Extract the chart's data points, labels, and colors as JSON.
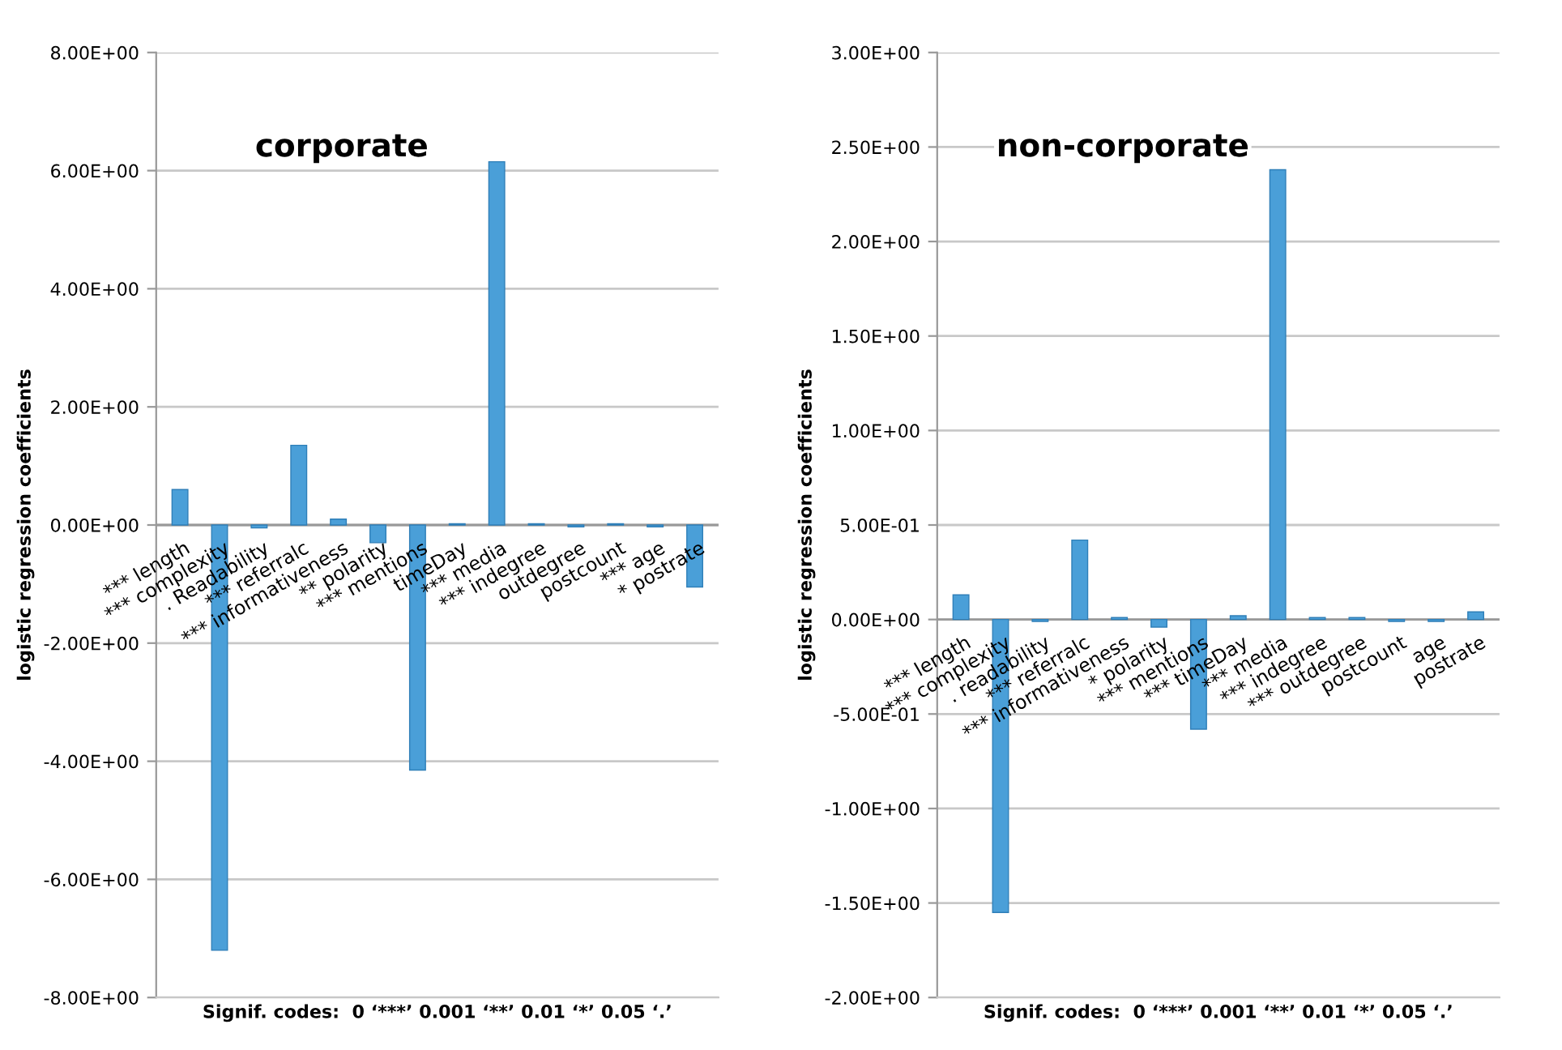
{
  "chart_data": [
    {
      "type": "bar",
      "title": "corporate",
      "ylabel": "logistic regression coefficients",
      "xlabel": "Signif. codes:  0 ‘***’ 0.001 ‘**’ 0.01 ‘*’ 0.05 ‘.’",
      "categories": [
        "*** length",
        "*** complexity",
        ". Readability",
        "*** referralc",
        "*** informativeness",
        "** polarity",
        "*** mentions",
        "timeDay",
        "*** media",
        "*** indegree",
        "outdegree",
        "postcount",
        "*** age",
        "* postrate"
      ],
      "values": [
        0.6,
        -7.2,
        -0.05,
        1.35,
        0.1,
        -0.3,
        -4.15,
        0.02,
        6.15,
        0.02,
        -0.03,
        0.02,
        -0.03,
        -1.05
      ],
      "color": "#4a9fd8",
      "ylim": [
        -8,
        8
      ],
      "yticks": [
        {
          "value": -8,
          "label": "-8.00E+00"
        },
        {
          "value": -6,
          "label": "-6.00E+00"
        },
        {
          "value": -4,
          "label": "-4.00E+00"
        },
        {
          "value": -2,
          "label": "-2.00E+00"
        },
        {
          "value": 0,
          "label": "0.00E+00"
        },
        {
          "value": 2,
          "label": "2.00E+00"
        },
        {
          "value": 4,
          "label": "4.00E+00"
        },
        {
          "value": 6,
          "label": "6.00E+00"
        },
        {
          "value": 8,
          "label": "8.00E+00"
        }
      ],
      "grid": "y"
    },
    {
      "type": "bar",
      "title": "non-corporate",
      "ylabel": "logistic regression coefficients",
      "xlabel": "Signif. codes:  0 ‘***’ 0.001 ‘**’ 0.01 ‘*’ 0.05 ‘.’",
      "categories": [
        "*** length",
        "*** complexity",
        ". readability",
        "*** referralc",
        "*** informativeness",
        "* polarity",
        "*** mentions",
        "*** timeDay",
        "*** media",
        "*** indegree",
        "*** outdegree",
        "postcount",
        "age",
        "postrate"
      ],
      "values": [
        0.13,
        -1.55,
        -0.01,
        0.42,
        0.01,
        -0.04,
        -0.58,
        0.02,
        2.38,
        0.01,
        0.01,
        -0.01,
        -0.01,
        0.04
      ],
      "color": "#4a9fd8",
      "ylim": [
        -2,
        3
      ],
      "yticks": [
        {
          "value": -2,
          "label": "-2.00E+00"
        },
        {
          "value": -1.5,
          "label": "-1.50E+00"
        },
        {
          "value": -1,
          "label": "-1.00E+00"
        },
        {
          "value": -0.5,
          "label": "-5.00E-01"
        },
        {
          "value": 0,
          "label": "0.00E+00"
        },
        {
          "value": 0.5,
          "label": "5.00E-01"
        },
        {
          "value": 1,
          "label": "1.00E+00"
        },
        {
          "value": 1.5,
          "label": "1.50E+00"
        },
        {
          "value": 2,
          "label": "2.00E+00"
        },
        {
          "value": 2.5,
          "label": "2.50E+00"
        },
        {
          "value": 3,
          "label": "3.00E+00"
        }
      ],
      "grid": "y"
    }
  ]
}
